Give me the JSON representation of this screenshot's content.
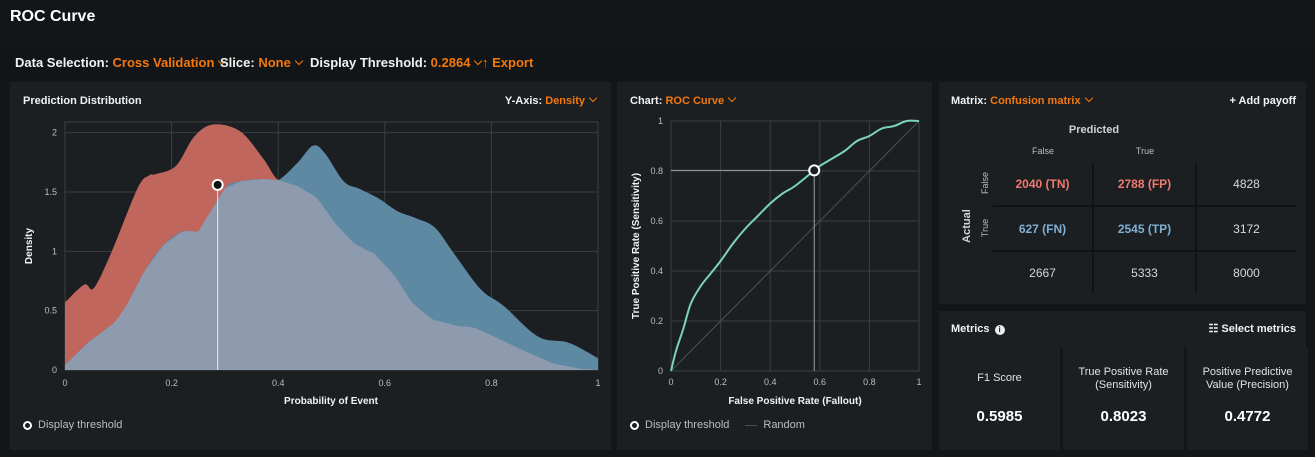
{
  "page_title": "ROC Curve",
  "toolbar": {
    "data_selection_label": "Data Selection:",
    "data_selection_value": "Cross Validation",
    "slice_label": "Slice:",
    "slice_value": "None",
    "threshold_label": "Display Threshold:",
    "threshold_value": "0.2864",
    "export_label": "Export"
  },
  "colors": {
    "accent": "#f4780e",
    "negative": "#c0665c",
    "positive": "#5e89a3",
    "overlap": "#8e9aae",
    "roc": "#7cd3bd"
  },
  "distribution": {
    "title": "Prediction Distribution",
    "yaxis_label": "Y-Axis:",
    "yaxis_value": "Density",
    "legend": "Display threshold"
  },
  "roc": {
    "chart_label": "Chart:",
    "chart_value": "ROC Curve",
    "legend_threshold": "Display threshold",
    "legend_random": "Random"
  },
  "chart_data": [
    {
      "type": "area",
      "title": "Prediction Distribution",
      "xlabel": "Probability of Event",
      "ylabel": "Density",
      "xlim": [
        0,
        1
      ],
      "ylim": [
        0,
        2.09
      ],
      "xticks": [
        "0",
        "0.2",
        "0.4",
        "0.6",
        "0.8",
        "1"
      ],
      "yticks": [
        "0",
        "0.5",
        "1",
        "1.5",
        "2"
      ],
      "threshold": 0.2864,
      "threshold_density": 1.56,
      "series": [
        {
          "name": "negative",
          "x": [
            0,
            0.036,
            0.054,
            0.086,
            0.136,
            0.158,
            0.17,
            0.208,
            0.243,
            0.279,
            0.329,
            0.372,
            0.4,
            0.437,
            0.473,
            0.508,
            0.544,
            0.58,
            0.616,
            0.651,
            0.687,
            0.737,
            0.766,
            0.816,
            0.852,
            0.916,
            0.967,
            1
          ],
          "y": [
            0.57,
            0.72,
            0.69,
            0.98,
            1.53,
            1.64,
            1.65,
            1.72,
            1.97,
            2.07,
            2.01,
            1.78,
            1.6,
            1.55,
            1.45,
            1.23,
            1.06,
            0.98,
            0.81,
            0.57,
            0.43,
            0.37,
            0.36,
            0.26,
            0.18,
            0.055,
            0.01,
            0
          ]
        },
        {
          "name": "positive",
          "x": [
            0,
            0.043,
            0.093,
            0.115,
            0.15,
            0.186,
            0.222,
            0.25,
            0.3,
            0.329,
            0.372,
            0.4,
            0.437,
            0.465,
            0.487,
            0.523,
            0.551,
            0.587,
            0.623,
            0.658,
            0.694,
            0.73,
            0.78,
            0.823,
            0.888,
            0.945,
            1
          ],
          "y": [
            0.04,
            0.23,
            0.4,
            0.54,
            0.84,
            1.06,
            1.17,
            1.17,
            1.53,
            1.59,
            1.61,
            1.6,
            1.75,
            1.89,
            1.83,
            1.59,
            1.53,
            1.45,
            1.34,
            1.28,
            1.2,
            0.98,
            0.68,
            0.54,
            0.28,
            0.23,
            0.1
          ]
        }
      ]
    },
    {
      "type": "line",
      "title": "ROC Curve",
      "xlabel": "False Positive Rate (Fallout)",
      "ylabel": "True Positive Rate (Sensitivity)",
      "xlim": [
        0,
        1
      ],
      "ylim": [
        0,
        1
      ],
      "xticks": [
        "0",
        "0.2",
        "0.4",
        "0.6",
        "0.8",
        "1"
      ],
      "yticks": [
        "0",
        "0.2",
        "0.4",
        "0.6",
        "0.8",
        "1"
      ],
      "threshold_point": [
        0.5775,
        0.8023
      ],
      "series": [
        {
          "name": "ROC",
          "x": [
            0,
            0.02,
            0.05,
            0.08,
            0.12,
            0.16,
            0.2,
            0.25,
            0.3,
            0.35,
            0.4,
            0.45,
            0.5,
            0.5775,
            0.6,
            0.65,
            0.7,
            0.75,
            0.8,
            0.85,
            0.9,
            0.95,
            1
          ],
          "y": [
            0,
            0.08,
            0.17,
            0.27,
            0.34,
            0.39,
            0.44,
            0.51,
            0.57,
            0.62,
            0.67,
            0.71,
            0.74,
            0.8023,
            0.82,
            0.85,
            0.88,
            0.92,
            0.94,
            0.97,
            0.98,
            1.0,
            1
          ]
        },
        {
          "name": "Random",
          "x": [
            0,
            1
          ],
          "y": [
            0,
            1
          ]
        }
      ]
    }
  ],
  "matrix": {
    "label": "Matrix:",
    "value": "Confusion matrix",
    "add_payoff": "Add payoff",
    "predicted": "Predicted",
    "actual": "Actual",
    "col_false": "False",
    "col_true": "True",
    "row_false": "False",
    "row_true": "True",
    "tn": "2040 (TN)",
    "fp": "2788 (FP)",
    "row1_total": "4828",
    "fn": "627 (FN)",
    "tp": "2545 (TP)",
    "row2_total": "3172",
    "col1_total": "2667",
    "col2_total": "5333",
    "grand_total": "8000"
  },
  "metrics": {
    "title": "Metrics",
    "select": "Select metrics",
    "cards": [
      {
        "label": "F1 Score",
        "value": "0.5985"
      },
      {
        "label": "True Positive Rate (Sensitivity)",
        "value": "0.8023"
      },
      {
        "label": "Positive Predictive Value (Precision)",
        "value": "0.4772"
      }
    ]
  }
}
